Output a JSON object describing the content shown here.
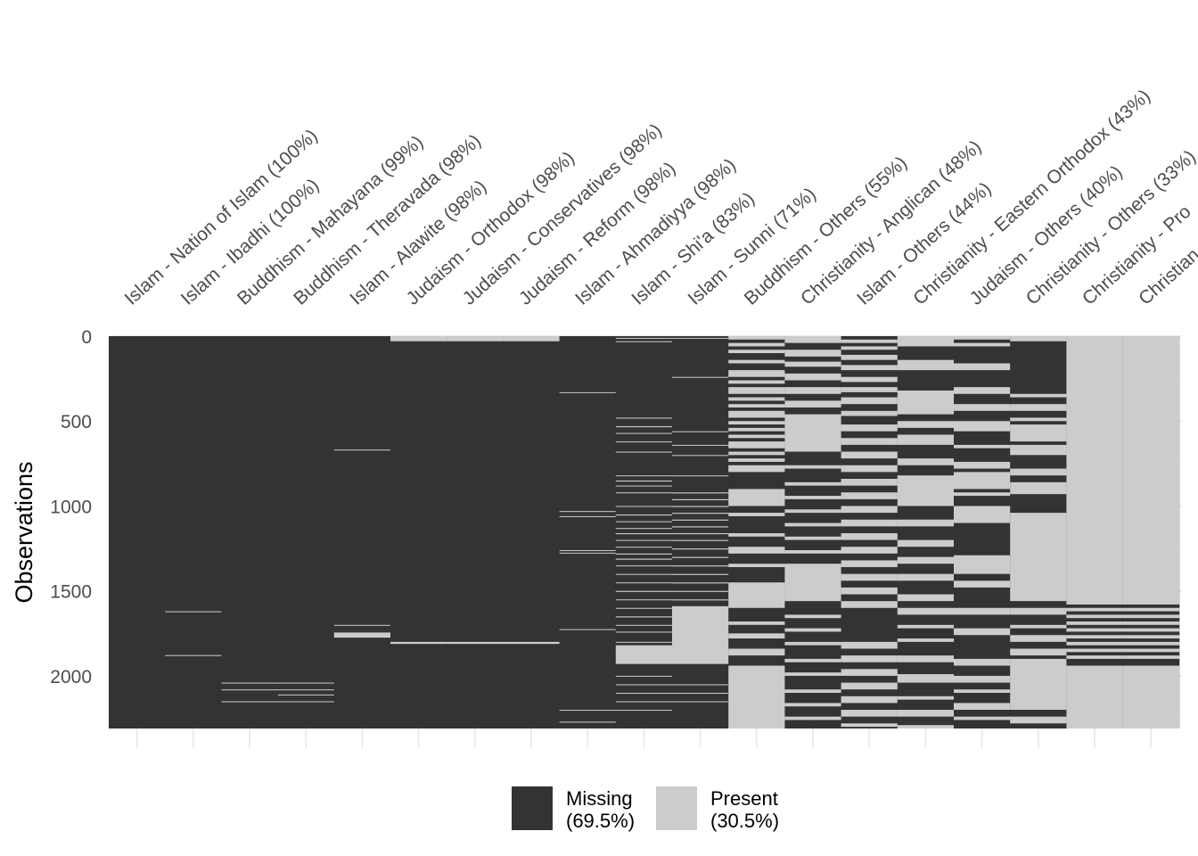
{
  "chart_data": {
    "type": "heatmap",
    "title": "",
    "xlabel": "",
    "ylabel": "Observations",
    "y_ticks": [
      "0",
      "500",
      "1000",
      "1500",
      "2000"
    ],
    "ylim": [
      0,
      2310
    ],
    "n_observations": 2310,
    "grid": true,
    "legend_position": "bottom",
    "colors": {
      "missing": "#333333",
      "present": "#cccccc"
    },
    "columns": [
      "Islam - Nation of Islam (100%)",
      "Islam - Ibadhi (100%)",
      "Buddhism - Mahayana (99%)",
      "Buddhism - Theravada (98%)",
      "Islam - Alawite (98%)",
      "Judaism - Orthodox (98%)",
      "Judaism - Conservatives (98%)",
      "Judaism - Reform (98%)",
      "Islam - Ahmadiyya (98%)",
      "Islam - Shi'a (83%)",
      "Islam - Sunni (71%)",
      "Buddhism - Others (55%)",
      "Christianity - Anglican (48%)",
      "Islam - Others (44%)",
      "Christianity - Eastern Orthodox (43%)",
      "Judaism - Others (40%)",
      "Christianity - Others (33%)",
      "Christianity - Pro",
      "Christian"
    ],
    "missing_pct": [
      100,
      100,
      99,
      98,
      98,
      98,
      98,
      98,
      98,
      83,
      71,
      55,
      48,
      44,
      43,
      40,
      33,
      null,
      null
    ],
    "present_blocks": [
      [],
      [
        [
          1620,
          1624
        ],
        [
          1878,
          1882
        ]
      ],
      [
        [
          2040,
          2044
        ],
        [
          2080,
          2084
        ],
        [
          2150,
          2154
        ]
      ],
      [
        [
          2040,
          2044
        ],
        [
          2080,
          2084
        ],
        [
          2110,
          2114
        ],
        [
          2150,
          2154
        ]
      ],
      [
        [
          668,
          672
        ],
        [
          1700,
          1704
        ],
        [
          1745,
          1775
        ]
      ],
      [
        [
          0,
          30
        ],
        [
          1800,
          1812
        ]
      ],
      [
        [
          0,
          30
        ],
        [
          1800,
          1812
        ]
      ],
      [
        [
          0,
          30
        ],
        [
          1800,
          1812
        ]
      ],
      [
        [
          330,
          334
        ],
        [
          1030,
          1034
        ],
        [
          1060,
          1064
        ],
        [
          1260,
          1264
        ],
        [
          1275,
          1279
        ],
        [
          1725,
          1729
        ],
        [
          2200,
          2204
        ],
        [
          2270,
          2274
        ]
      ],
      [
        [
          10,
          14
        ],
        [
          30,
          34
        ],
        [
          480,
          484
        ],
        [
          530,
          536
        ],
        [
          570,
          574
        ],
        [
          620,
          624
        ],
        [
          680,
          684
        ],
        [
          820,
          824
        ],
        [
          850,
          856
        ],
        [
          880,
          884
        ],
        [
          920,
          924
        ],
        [
          1000,
          1004
        ],
        [
          1050,
          1056
        ],
        [
          1090,
          1094
        ],
        [
          1130,
          1134
        ],
        [
          1160,
          1166
        ],
        [
          1200,
          1204
        ],
        [
          1240,
          1244
        ],
        [
          1280,
          1286
        ],
        [
          1310,
          1316
        ],
        [
          1350,
          1354
        ],
        [
          1400,
          1404
        ],
        [
          1450,
          1454
        ],
        [
          1500,
          1506
        ],
        [
          1550,
          1554
        ],
        [
          1600,
          1604
        ],
        [
          1650,
          1656
        ],
        [
          1700,
          1704
        ],
        [
          1740,
          1744
        ],
        [
          1800,
          1804
        ],
        [
          1820,
          1930
        ],
        [
          2000,
          2004
        ],
        [
          2050,
          2054
        ],
        [
          2100,
          2104
        ],
        [
          2150,
          2154
        ],
        [
          2200,
          2204
        ]
      ],
      [
        [
          10,
          14
        ],
        [
          240,
          244
        ],
        [
          560,
          564
        ],
        [
          640,
          644
        ],
        [
          700,
          704
        ],
        [
          820,
          824
        ],
        [
          920,
          926
        ],
        [
          960,
          966
        ],
        [
          1000,
          1006
        ],
        [
          1040,
          1046
        ],
        [
          1080,
          1086
        ],
        [
          1120,
          1126
        ],
        [
          1160,
          1166
        ],
        [
          1200,
          1206
        ],
        [
          1250,
          1256
        ],
        [
          1300,
          1306
        ],
        [
          1350,
          1356
        ],
        [
          1400,
          1406
        ],
        [
          1450,
          1456
        ],
        [
          1500,
          1506
        ],
        [
          1550,
          1556
        ],
        [
          1590,
          1930
        ],
        [
          2050,
          2054
        ],
        [
          2100,
          2104
        ],
        [
          2150,
          2154
        ]
      ],
      [
        [
          0,
          20
        ],
        [
          40,
          60
        ],
        [
          80,
          100
        ],
        [
          140,
          160
        ],
        [
          200,
          240
        ],
        [
          260,
          280
        ],
        [
          300,
          340
        ],
        [
          360,
          380
        ],
        [
          400,
          420
        ],
        [
          440,
          480
        ],
        [
          500,
          520
        ],
        [
          540,
          560
        ],
        [
          580,
          600
        ],
        [
          620,
          660
        ],
        [
          680,
          700
        ],
        [
          720,
          740
        ],
        [
          760,
          800
        ],
        [
          900,
          1000
        ],
        [
          1040,
          1060
        ],
        [
          1160,
          1180
        ],
        [
          1240,
          1280
        ],
        [
          1340,
          1360
        ],
        [
          1450,
          1600
        ],
        [
          1680,
          1700
        ],
        [
          1750,
          1780
        ],
        [
          1840,
          1880
        ],
        [
          1940,
          2310
        ]
      ],
      [
        [
          0,
          40
        ],
        [
          80,
          120
        ],
        [
          150,
          180
        ],
        [
          220,
          260
        ],
        [
          300,
          340
        ],
        [
          380,
          420
        ],
        [
          460,
          680
        ],
        [
          760,
          780
        ],
        [
          860,
          880
        ],
        [
          940,
          960
        ],
        [
          1020,
          1040
        ],
        [
          1100,
          1120
        ],
        [
          1180,
          1200
        ],
        [
          1260,
          1280
        ],
        [
          1340,
          1560
        ],
        [
          1640,
          1660
        ],
        [
          1720,
          1740
        ],
        [
          1800,
          1820
        ],
        [
          1900,
          1920
        ],
        [
          1980,
          2000
        ],
        [
          2080,
          2100
        ],
        [
          2160,
          2180
        ],
        [
          2240,
          2260
        ]
      ],
      [
        [
          20,
          40
        ],
        [
          60,
          80
        ],
        [
          110,
          140
        ],
        [
          170,
          200
        ],
        [
          240,
          270
        ],
        [
          300,
          330
        ],
        [
          360,
          400
        ],
        [
          440,
          470
        ],
        [
          520,
          560
        ],
        [
          600,
          640
        ],
        [
          680,
          720
        ],
        [
          760,
          800
        ],
        [
          840,
          880
        ],
        [
          920,
          960
        ],
        [
          1000,
          1040
        ],
        [
          1080,
          1120
        ],
        [
          1160,
          1200
        ],
        [
          1240,
          1280
        ],
        [
          1320,
          1360
        ],
        [
          1400,
          1440
        ],
        [
          1480,
          1520
        ],
        [
          1560,
          1600
        ],
        [
          1800,
          1840
        ],
        [
          1880,
          1920
        ],
        [
          1960,
          2000
        ],
        [
          2040,
          2080
        ],
        [
          2120,
          2160
        ],
        [
          2200,
          2240
        ],
        [
          2280,
          2300
        ]
      ],
      [
        [
          0,
          60
        ],
        [
          140,
          200
        ],
        [
          320,
          460
        ],
        [
          500,
          540
        ],
        [
          580,
          640
        ],
        [
          720,
          760
        ],
        [
          820,
          1000
        ],
        [
          1080,
          1120
        ],
        [
          1200,
          1240
        ],
        [
          1300,
          1340
        ],
        [
          1400,
          1440
        ],
        [
          1520,
          1560
        ],
        [
          1600,
          1640
        ],
        [
          1700,
          1720
        ],
        [
          1780,
          1800
        ],
        [
          1880,
          1920
        ],
        [
          1990,
          2040
        ],
        [
          2120,
          2140
        ],
        [
          2200,
          2240
        ],
        [
          2290,
          2310
        ]
      ],
      [
        [
          0,
          20
        ],
        [
          40,
          60
        ],
        [
          160,
          200
        ],
        [
          300,
          340
        ],
        [
          400,
          440
        ],
        [
          500,
          560
        ],
        [
          640,
          660
        ],
        [
          740,
          780
        ],
        [
          800,
          900
        ],
        [
          920,
          940
        ],
        [
          1000,
          1100
        ],
        [
          1290,
          1400
        ],
        [
          1440,
          1480
        ],
        [
          1600,
          1640
        ],
        [
          1720,
          1760
        ],
        [
          1900,
          1940
        ],
        [
          2000,
          2040
        ],
        [
          2080,
          2100
        ],
        [
          2160,
          2200
        ],
        [
          2240,
          2260
        ]
      ],
      [
        [
          0,
          30
        ],
        [
          340,
          360
        ],
        [
          400,
          440
        ],
        [
          480,
          500
        ],
        [
          520,
          620
        ],
        [
          640,
          700
        ],
        [
          780,
          820
        ],
        [
          860,
          930
        ],
        [
          1040,
          1560
        ],
        [
          1600,
          1640
        ],
        [
          1700,
          1720
        ],
        [
          1760,
          1800
        ],
        [
          1840,
          1880
        ],
        [
          1900,
          2200
        ],
        [
          2240,
          2280
        ]
      ],
      [
        [
          0,
          1580
        ],
        [
          1600,
          1620
        ],
        [
          1640,
          1660
        ],
        [
          1680,
          1700
        ],
        [
          1720,
          1740
        ],
        [
          1760,
          1780
        ],
        [
          1800,
          1820
        ],
        [
          1840,
          1860
        ],
        [
          1880,
          1900
        ],
        [
          1940,
          2310
        ]
      ],
      [
        [
          0,
          1580
        ],
        [
          1600,
          1620
        ],
        [
          1640,
          1660
        ],
        [
          1680,
          1700
        ],
        [
          1720,
          1740
        ],
        [
          1760,
          1780
        ],
        [
          1800,
          1820
        ],
        [
          1840,
          1860
        ],
        [
          1880,
          1900
        ],
        [
          1940,
          2310
        ]
      ]
    ],
    "legend": [
      {
        "label": "Missing",
        "pct": "(69.5%)",
        "color": "#333333"
      },
      {
        "label": "Present",
        "pct": "(30.5%)",
        "color": "#cccccc"
      }
    ]
  }
}
